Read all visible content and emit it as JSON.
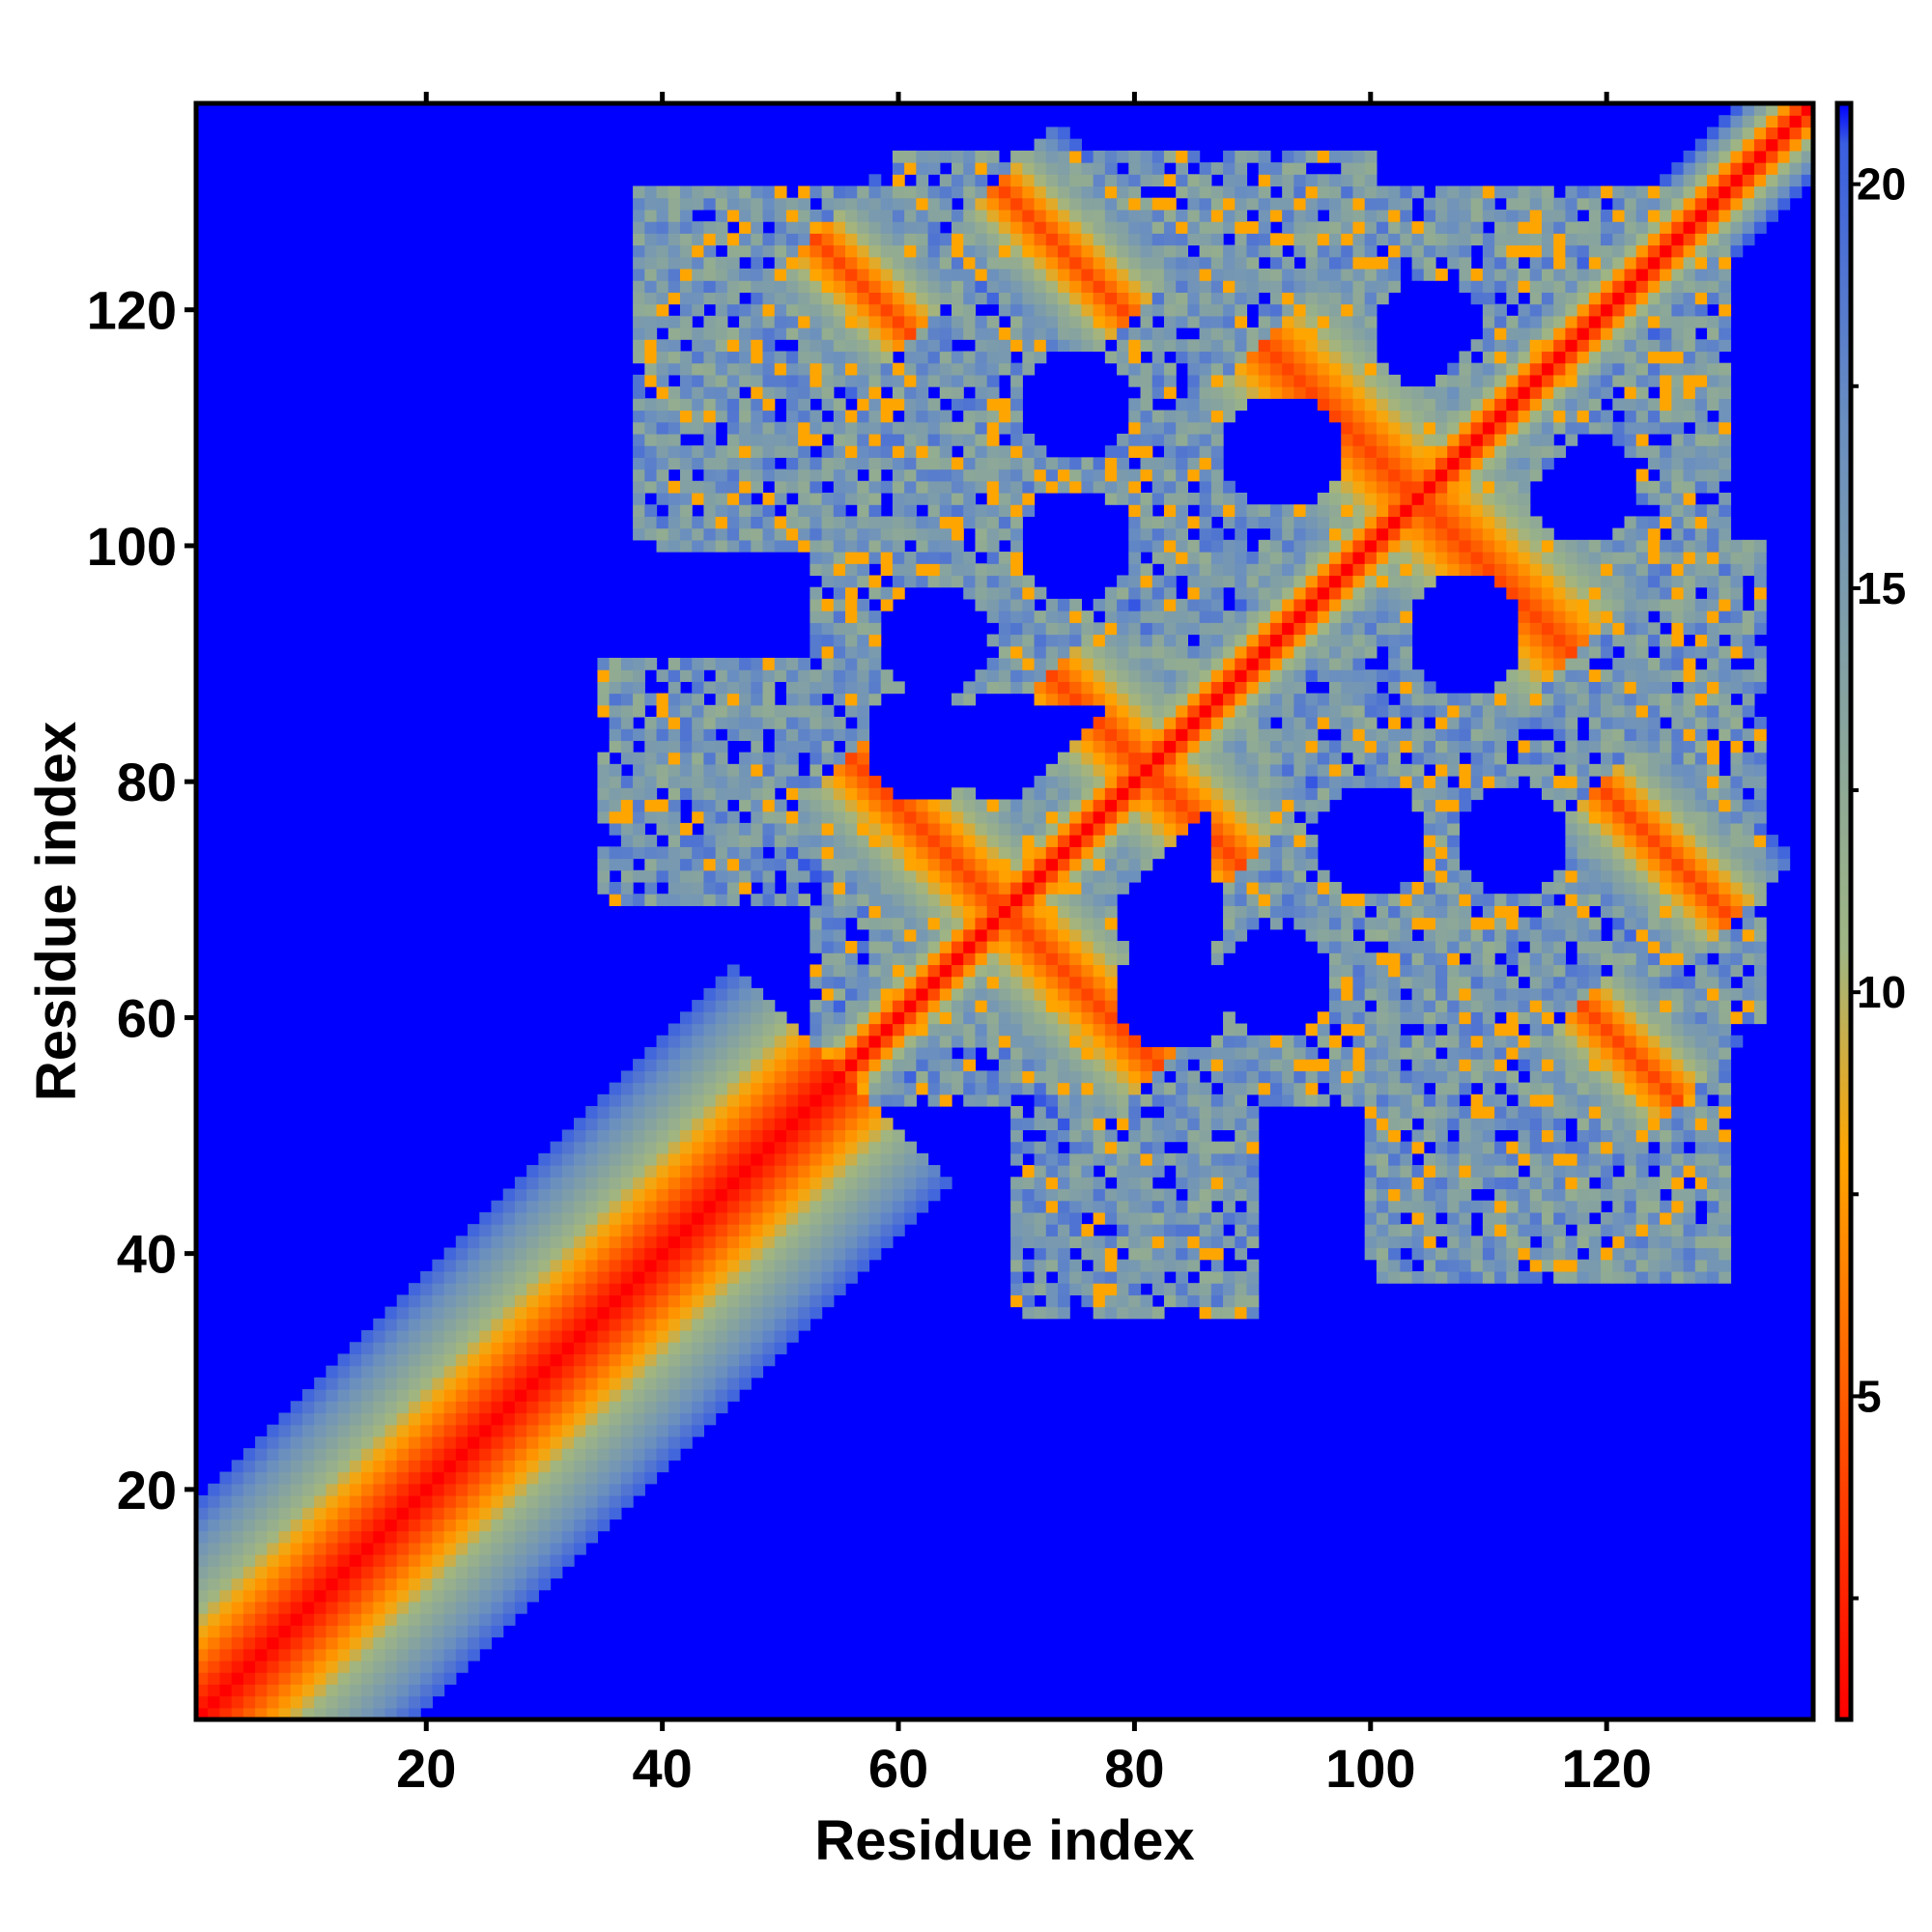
{
  "chart_data": {
    "type": "heatmap",
    "title": "",
    "xlabel": "Residue index",
    "ylabel": "Residue index",
    "n_residues": 137,
    "xlim": [
      1,
      137
    ],
    "ylim": [
      1,
      137
    ],
    "x_ticks": [
      20,
      40,
      60,
      80,
      100,
      120
    ],
    "y_ticks": [
      20,
      40,
      60,
      80,
      100,
      120
    ],
    "x_tick_labels": [
      "20",
      "40",
      "60",
      "80",
      "100",
      "120"
    ],
    "y_tick_labels": [
      "20",
      "40",
      "60",
      "80",
      "100",
      "120"
    ],
    "colorbar": {
      "range": [
        1,
        21
      ],
      "ticks": [
        5,
        10,
        15,
        20
      ],
      "tick_labels": [
        "5",
        "10",
        "15",
        "20"
      ],
      "stops": [
        {
          "value": 1,
          "color": "#ff0000"
        },
        {
          "value": 4,
          "color": "#ff4400"
        },
        {
          "value": 8,
          "color": "#ffa500"
        },
        {
          "value": 10.5,
          "color": "#9fb583"
        },
        {
          "value": 17,
          "color": "#6a8fc0"
        },
        {
          "value": 20.5,
          "color": "#3a5ee0"
        },
        {
          "value": 21,
          "color": "#0000ff"
        }
      ]
    },
    "description_of_values": "pairwise residue distance map; symmetric about diagonal; low values near diagonal",
    "contact_regions": [
      {
        "name": "n-terminal-band",
        "diag_from": 1,
        "diag_to": 55,
        "width": 9
      },
      {
        "name": "central-band",
        "diag_from": 55,
        "diag_to": 137,
        "width": 2.5
      },
      {
        "name": "cross-strand-1",
        "center": [
          63,
          75
        ],
        "orientation": "anti",
        "half_len": 10,
        "width": 5
      },
      {
        "name": "cross-strand-2",
        "center": [
          80,
          82
        ],
        "orientation": "anti",
        "half_len": 10,
        "width": 5
      },
      {
        "name": "cross-strand-3",
        "center": [
          102,
          106
        ],
        "orientation": "anti",
        "half_len": 16,
        "width": 6
      },
      {
        "name": "cross-strand-4",
        "center": [
          74,
          125
        ],
        "orientation": "anti",
        "half_len": 8,
        "width": 4
      },
      {
        "name": "cross-strand-5",
        "center": [
          122,
          57
        ],
        "orientation": "anti",
        "half_len": 6,
        "width": 4
      },
      {
        "name": "block-A",
        "x": [
          53,
          80
        ],
        "y": [
          80,
          122
        ]
      },
      {
        "name": "block-B",
        "x": [
          53,
          83
        ],
        "y": [
          56,
          100
        ]
      },
      {
        "name": "block-C",
        "x": [
          73,
          113
        ],
        "y": [
          100,
          130
        ]
      },
      {
        "name": "block-D",
        "x": [
          85,
          133
        ],
        "y": [
          60,
          100
        ]
      },
      {
        "name": "block-E",
        "x": [
          100,
          130
        ],
        "y": [
          38,
          75
        ]
      },
      {
        "name": "block-F",
        "x": [
          70,
          90
        ],
        "y": [
          35,
          60
        ]
      },
      {
        "name": "block-G",
        "x": [
          95,
          130
        ],
        "y": [
          100,
          130
        ]
      }
    ]
  }
}
